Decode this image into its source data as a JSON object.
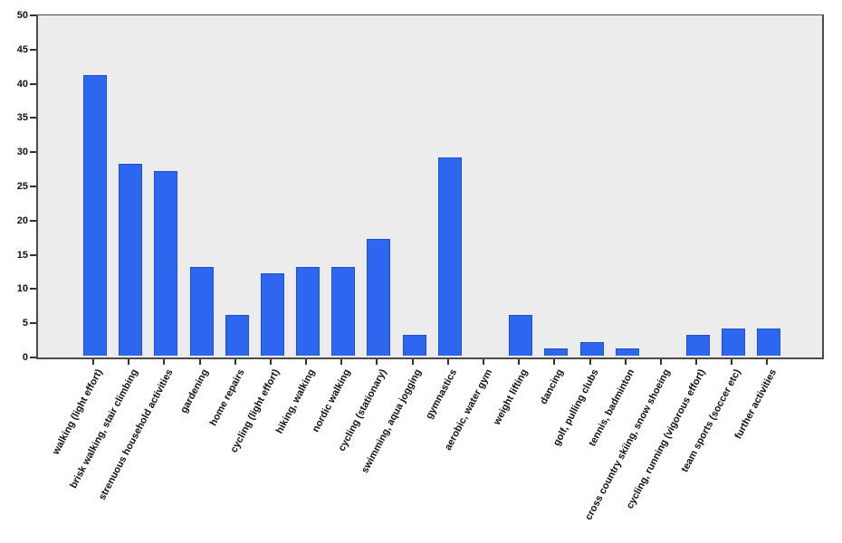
{
  "chart_data": {
    "type": "bar",
    "title": "",
    "xlabel": "",
    "ylabel": "",
    "ylim": [
      0,
      50
    ],
    "ytick_step": 5,
    "yticks": [
      0,
      5,
      10,
      15,
      20,
      25,
      30,
      35,
      40,
      45,
      50
    ],
    "categories": [
      "walking (light effort)",
      "brisk walking, stair climbing",
      "strenuous household activities",
      "gardening",
      "home repairs",
      "cycling (light effort)",
      "hiking, walking",
      "nordic walking",
      "cycling (stationary)",
      "swimming, aqua jogging",
      "gymnastics",
      "aerobic, water gym",
      "weight lifting",
      "dancing",
      "golf, pulling clubs",
      "tennis, badminton",
      "cross country skiing, snow shoeing",
      "cycling, running (vigorous effort)",
      "team sports (soccer etc)",
      "further activities"
    ],
    "values": [
      41,
      28,
      27,
      13,
      6,
      12,
      13,
      13,
      17,
      3,
      29,
      0,
      6,
      1,
      2,
      1,
      0,
      3,
      4,
      4
    ],
    "grid": false,
    "legend": "none",
    "x_label_rotation_deg": 62,
    "colors": {
      "bar_fill": "#2d67f0",
      "bar_border": "#1e4fd2",
      "plot_background": "#ececec",
      "axis_frame": "#4a4a4a",
      "tick": "#333333",
      "label_text": "#111111",
      "page_background": "#ffffff"
    }
  }
}
